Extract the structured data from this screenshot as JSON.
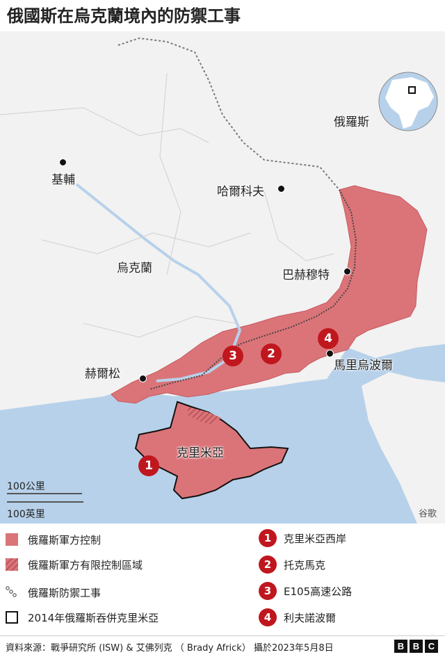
{
  "title": "俄國斯在烏克蘭境內的防禦工事",
  "map": {
    "place_labels": {
      "russia": "俄羅斯",
      "ukraine": "烏克蘭",
      "kyiv": "基輔",
      "kharkiv": "哈爾科夫",
      "bakhmut": "巴赫穆特",
      "kherson": "赫爾松",
      "mariupol": "馬里烏波爾",
      "crimea": "克里米亞"
    },
    "markers": [
      "1",
      "2",
      "3",
      "4"
    ],
    "scale_km": "100公里",
    "scale_mi": "100英里",
    "credit": "谷歌",
    "colors": {
      "sea": "#b7d1ea",
      "land": "#f2f2f2",
      "occupied": "#db7478",
      "marker": "#c0171e"
    }
  },
  "legend": {
    "items": [
      {
        "icon": "occupied-swatch",
        "label": "俄羅斯軍方控制"
      },
      {
        "icon": "limited-control-hatch",
        "label": "俄羅斯軍方有限控制區域"
      },
      {
        "icon": "fortification-icon",
        "label": "俄羅斯防禦工事"
      },
      {
        "icon": "crimea-outline-swatch",
        "label": "2014年俄羅斯吞併克里米亞"
      }
    ],
    "numbered": [
      {
        "num": "1",
        "label": "克里米亞西岸"
      },
      {
        "num": "2",
        "label": "托克馬克"
      },
      {
        "num": "3",
        "label": "E105高速公路"
      },
      {
        "num": "4",
        "label": "利夫諾波爾"
      }
    ]
  },
  "footer": {
    "source": "資料來源：戰爭研究所 (ISW) & 艾佛列克 （ Brady Africk） 攝於2023年5月8日",
    "brand": [
      "B",
      "B",
      "C"
    ]
  }
}
